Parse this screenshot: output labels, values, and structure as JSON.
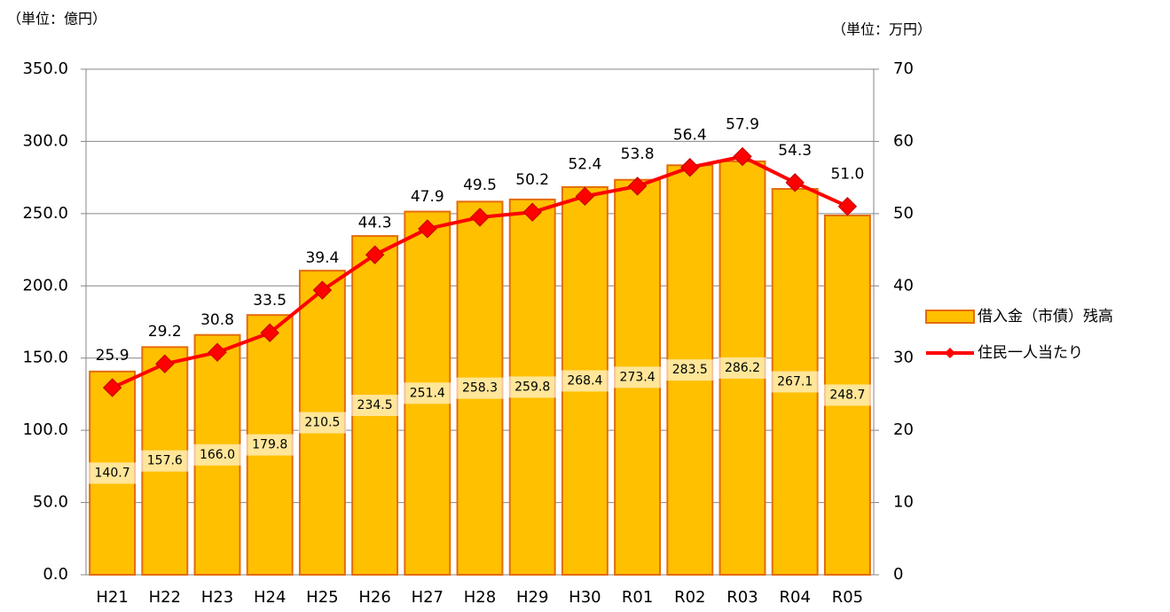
{
  "chart_data": {
    "type": "combo",
    "y_unit": "（単位：億円）",
    "y2_unit": "（単位：万円）",
    "categories": [
      "H21",
      "H22",
      "H23",
      "H24",
      "H25",
      "H26",
      "H27",
      "H28",
      "H29",
      "H30",
      "R01",
      "R02",
      "R03",
      "R04",
      "R05"
    ],
    "series": [
      {
        "name": "借入金（市債）残高",
        "type": "bar",
        "color": "#FFC000",
        "edge_color": "#E46C0A",
        "values": [
          140.7,
          157.6,
          166.0,
          179.8,
          210.5,
          234.5,
          251.4,
          258.3,
          259.8,
          268.4,
          273.4,
          283.5,
          286.2,
          267.1,
          248.7
        ],
        "value_labels": [
          "140.7",
          "157.6",
          "166.0",
          "179.8",
          "210.5",
          "234.5",
          "251.4",
          "258.3",
          "259.8",
          "268.4",
          "273.4",
          "283.5",
          "286.2",
          "267.1",
          "248.7"
        ]
      },
      {
        "name": "住民一人当たり",
        "type": "line",
        "axis": "y2",
        "color": "#FF0000",
        "values": [
          25.9,
          29.2,
          30.8,
          33.5,
          39.4,
          44.3,
          47.9,
          49.5,
          50.2,
          52.4,
          53.8,
          56.4,
          57.9,
          54.3,
          51.0
        ],
        "value_labels": [
          "25.9",
          "29.2",
          "30.8",
          "33.5",
          "39.4",
          "44.3",
          "47.9",
          "49.5",
          "50.2",
          "52.4",
          "53.8",
          "56.4",
          "57.9",
          "54.3",
          "51.0"
        ]
      }
    ],
    "ylim": [
      0,
      350
    ],
    "yticks": [
      {
        "value": 0,
        "label": "0.0"
      },
      {
        "value": 50,
        "label": "50.0"
      },
      {
        "value": 100,
        "label": "100.0"
      },
      {
        "value": 150,
        "label": "150.0"
      },
      {
        "value": 200,
        "label": "200.0"
      },
      {
        "value": 250,
        "label": "250.0"
      },
      {
        "value": 300,
        "label": "300.0"
      },
      {
        "value": 350,
        "label": "350.0"
      }
    ],
    "y2lim": [
      0,
      70
    ],
    "y2ticks": [
      0,
      10,
      20,
      30,
      40,
      50,
      60,
      70
    ],
    "grid": true,
    "legend": "right"
  }
}
